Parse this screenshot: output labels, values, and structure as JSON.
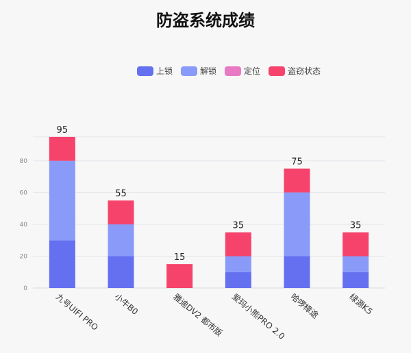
{
  "chart_data": {
    "type": "bar",
    "stacked": true,
    "title": "防盗系统成绩",
    "categories": [
      "九号UIFI PRO",
      "小牛B0",
      "雅迪DV2 都市版",
      "爱玛小熊PRO 2.0",
      "哈啰樟途",
      "绿源K5"
    ],
    "series": [
      {
        "name": "上锁",
        "values": [
          30,
          20,
          0,
          10,
          20,
          10
        ],
        "color": "#6470ef"
      },
      {
        "name": "解锁",
        "values": [
          50,
          20,
          0,
          10,
          40,
          10
        ],
        "color": "#8a9af8"
      },
      {
        "name": "定位",
        "values": [
          0,
          0,
          0,
          0,
          0,
          0
        ],
        "color": "#e879c2"
      },
      {
        "name": "盗窃状态",
        "values": [
          15,
          15,
          15,
          15,
          15,
          15
        ],
        "color": "#f6436c"
      }
    ],
    "totals": [
      95,
      55,
      15,
      35,
      75,
      35
    ],
    "y_ticks": [
      0,
      20,
      40,
      60,
      80
    ],
    "ylim": [
      0,
      95
    ],
    "grid": true,
    "legend_position": "top"
  }
}
